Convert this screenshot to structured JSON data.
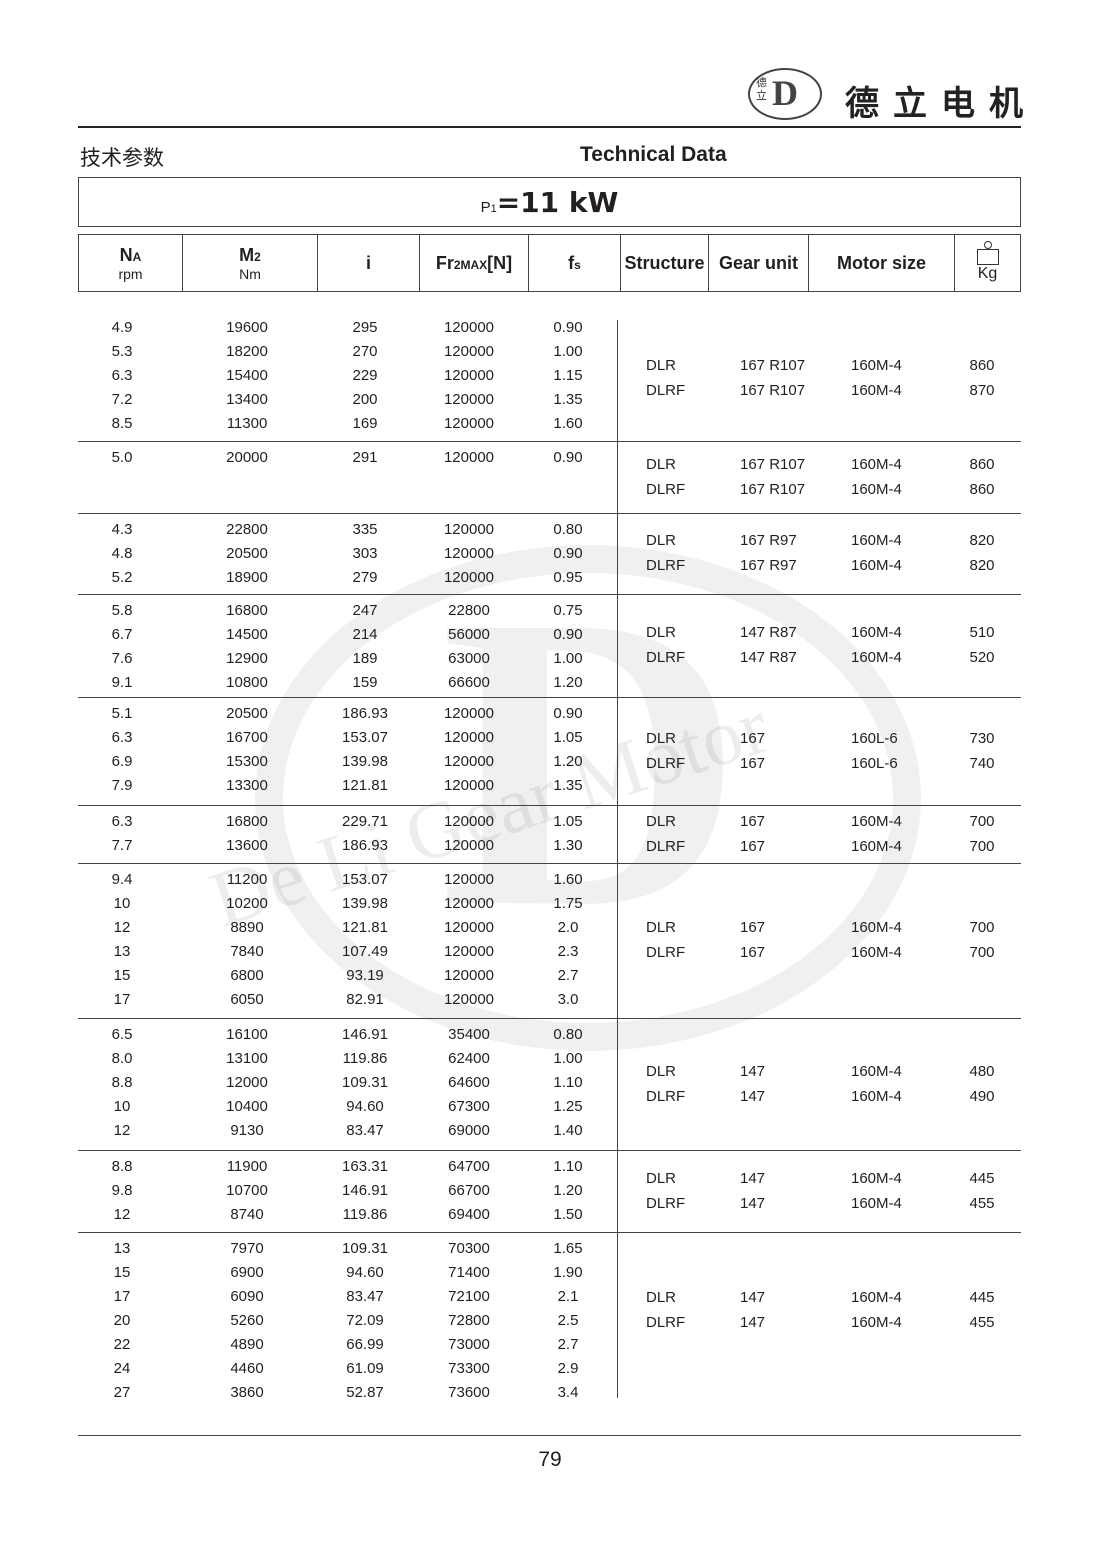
{
  "brand": {
    "name_cn": "德立电机",
    "logo_cn": "德立",
    "logo_en": "De Li Gear Motor"
  },
  "titles": {
    "cn": "技术参数",
    "en": "Technical Data"
  },
  "power": {
    "prefix": "P",
    "sub": "1",
    "value": "=11 kW"
  },
  "headers": {
    "na": "N",
    "na_sub": "A",
    "na_unit": "rpm",
    "m2": "M",
    "m2_sub": "2",
    "m2_unit": "Nm",
    "i": "i",
    "fr": "Fr",
    "fr_sub": "2MAX",
    "fr_unit": "[N]",
    "fs": "f",
    "fs_sub": "s",
    "structure": "Structure",
    "gear_unit": "Gear unit",
    "motor_size": "Motor size",
    "kg": "Kg"
  },
  "groups": [
    {
      "rows": [
        [
          "4.9",
          "19600",
          "295",
          "120000",
          "0.90"
        ],
        [
          "5.3",
          "18200",
          "270",
          "120000",
          "1.00"
        ],
        [
          "6.3",
          "15400",
          "229",
          "120000",
          "1.15"
        ],
        [
          "7.2",
          "13400",
          "200",
          "120000",
          "1.35"
        ],
        [
          "8.5",
          "11300",
          "169",
          "120000",
          "1.60"
        ]
      ],
      "units": [
        [
          "DLR",
          "167 R107",
          "160M-4",
          "860"
        ],
        [
          "DLRF",
          "167 R107",
          "160M-4",
          "870"
        ]
      ]
    },
    {
      "rows": [
        [
          "5.0",
          "20000",
          "291",
          "120000",
          "0.90"
        ]
      ],
      "units": [
        [
          "DLR",
          "167 R107",
          "160M-4",
          "860"
        ],
        [
          "DLRF",
          "167 R107",
          "160M-4",
          "860"
        ]
      ]
    },
    {
      "rows": [
        [
          "4.3",
          "22800",
          "335",
          "120000",
          "0.80"
        ],
        [
          "4.8",
          "20500",
          "303",
          "120000",
          "0.90"
        ],
        [
          "5.2",
          "18900",
          "279",
          "120000",
          "0.95"
        ]
      ],
      "units": [
        [
          "DLR",
          "167 R97",
          "160M-4",
          "820"
        ],
        [
          "DLRF",
          "167 R97",
          "160M-4",
          "820"
        ]
      ]
    },
    {
      "rows": [
        [
          "5.8",
          "16800",
          "247",
          "22800",
          "0.75"
        ],
        [
          "6.7",
          "14500",
          "214",
          "56000",
          "0.90"
        ],
        [
          "7.6",
          "12900",
          "189",
          "63000",
          "1.00"
        ],
        [
          "9.1",
          "10800",
          "159",
          "66600",
          "1.20"
        ]
      ],
      "units": [
        [
          "DLR",
          "147 R87",
          "160M-4",
          "510"
        ],
        [
          "DLRF",
          "147 R87",
          "160M-4",
          "520"
        ]
      ]
    },
    {
      "rows": [
        [
          "5.1",
          "20500",
          "186.93",
          "120000",
          "0.90"
        ],
        [
          "6.3",
          "16700",
          "153.07",
          "120000",
          "1.05"
        ],
        [
          "6.9",
          "15300",
          "139.98",
          "120000",
          "1.20"
        ],
        [
          "7.9",
          "13300",
          "121.81",
          "120000",
          "1.35"
        ]
      ],
      "units": [
        [
          "DLR",
          "167",
          "160L-6",
          "730"
        ],
        [
          "DLRF",
          "167",
          "160L-6",
          "740"
        ]
      ]
    },
    {
      "rows": [
        [
          "6.3",
          "16800",
          "229.71",
          "120000",
          "1.05"
        ],
        [
          "7.7",
          "13600",
          "186.93",
          "120000",
          "1.30"
        ]
      ],
      "units": [
        [
          "DLR",
          "167",
          "160M-4",
          "700"
        ],
        [
          "DLRF",
          "167",
          "160M-4",
          "700"
        ]
      ]
    },
    {
      "rows": [
        [
          "9.4",
          "11200",
          "153.07",
          "120000",
          "1.60"
        ],
        [
          "10",
          "10200",
          "139.98",
          "120000",
          "1.75"
        ],
        [
          "12",
          "8890",
          "121.81",
          "120000",
          "2.0"
        ],
        [
          "13",
          "7840",
          "107.49",
          "120000",
          "2.3"
        ],
        [
          "15",
          "6800",
          "93.19",
          "120000",
          "2.7"
        ],
        [
          "17",
          "6050",
          "82.91",
          "120000",
          "3.0"
        ]
      ],
      "units": [
        [
          "DLR",
          "167",
          "160M-4",
          "700"
        ],
        [
          "DLRF",
          "167",
          "160M-4",
          "700"
        ]
      ]
    },
    {
      "rows": [
        [
          "6.5",
          "16100",
          "146.91",
          "35400",
          "0.80"
        ],
        [
          "8.0",
          "13100",
          "119.86",
          "62400",
          "1.00"
        ],
        [
          "8.8",
          "12000",
          "109.31",
          "64600",
          "1.10"
        ],
        [
          "10",
          "10400",
          "94.60",
          "67300",
          "1.25"
        ],
        [
          "12",
          "9130",
          "83.47",
          "69000",
          "1.40"
        ]
      ],
      "units": [
        [
          "DLR",
          "147",
          "160M-4",
          "480"
        ],
        [
          "DLRF",
          "147",
          "160M-4",
          "490"
        ]
      ]
    },
    {
      "rows": [
        [
          "8.8",
          "11900",
          "163.31",
          "64700",
          "1.10"
        ],
        [
          "9.8",
          "10700",
          "146.91",
          "66700",
          "1.20"
        ],
        [
          "12",
          "8740",
          "119.86",
          "69400",
          "1.50"
        ]
      ],
      "units": [
        [
          "DLR",
          "147",
          "160M-4",
          "445"
        ],
        [
          "DLRF",
          "147",
          "160M-4",
          "455"
        ]
      ]
    },
    {
      "rows": [
        [
          "13",
          "7970",
          "109.31",
          "70300",
          "1.65"
        ],
        [
          "15",
          "6900",
          "94.60",
          "71400",
          "1.90"
        ],
        [
          "17",
          "6090",
          "83.47",
          "72100",
          "2.1"
        ],
        [
          "20",
          "5260",
          "72.09",
          "72800",
          "2.5"
        ],
        [
          "22",
          "4890",
          "66.99",
          "73000",
          "2.7"
        ],
        [
          "24",
          "4460",
          "61.09",
          "73300",
          "2.9"
        ],
        [
          "27",
          "3860",
          "52.87",
          "73600",
          "3.4"
        ]
      ],
      "units": [
        [
          "DLR",
          "147",
          "160M-4",
          "445"
        ],
        [
          "DLRF",
          "147",
          "160M-4",
          "455"
        ]
      ]
    }
  ],
  "page_number": "79"
}
